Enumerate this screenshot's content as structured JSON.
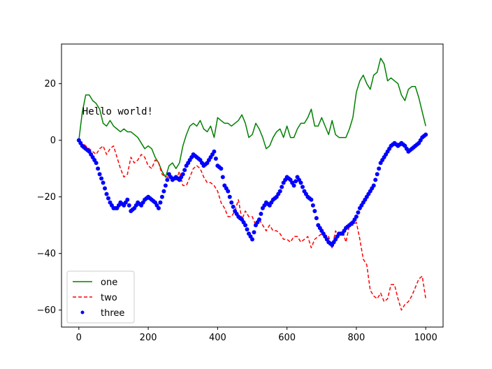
{
  "chart_data": {
    "type": "line",
    "x_range": [
      0,
      1000
    ],
    "xlim": [
      -50,
      1050
    ],
    "ylim": [
      -66,
      34
    ],
    "x_ticks": [
      0,
      200,
      400,
      600,
      800,
      1000
    ],
    "y_ticks": [
      20,
      0,
      -20,
      -40,
      -60
    ],
    "x_tick_labels": [
      "0",
      "200",
      "400",
      "600",
      "800",
      "1000"
    ],
    "y_tick_labels": [
      "20",
      "0",
      "−20",
      "−40",
      "−60"
    ],
    "grid": false,
    "legend_position": "lower-left",
    "annotation": {
      "text": "Hello world!",
      "x": 10,
      "y": 10
    },
    "series": [
      {
        "name": "one",
        "style": "solid-line",
        "color": "#008000",
        "x": [
          0,
          10,
          20,
          30,
          40,
          50,
          60,
          70,
          80,
          90,
          100,
          110,
          120,
          130,
          140,
          150,
          160,
          170,
          180,
          190,
          200,
          210,
          220,
          230,
          240,
          250,
          260,
          270,
          280,
          290,
          300,
          310,
          320,
          330,
          340,
          350,
          360,
          370,
          380,
          390,
          400,
          410,
          420,
          430,
          440,
          450,
          460,
          470,
          480,
          490,
          500,
          510,
          520,
          530,
          540,
          550,
          560,
          570,
          580,
          590,
          600,
          610,
          620,
          630,
          640,
          650,
          660,
          670,
          680,
          690,
          700,
          710,
          720,
          730,
          740,
          750,
          760,
          770,
          780,
          790,
          800,
          810,
          820,
          830,
          840,
          850,
          860,
          870,
          880,
          890,
          900,
          910,
          920,
          930,
          940,
          950,
          960,
          970,
          980,
          990,
          1000
        ],
        "values": [
          0,
          10,
          16,
          16,
          14,
          13,
          11,
          6,
          5,
          7,
          5,
          4,
          3,
          4,
          3,
          3,
          2,
          1,
          -1,
          -3,
          -2,
          -3,
          -6,
          -8,
          -11,
          -13,
          -9,
          -8,
          -10,
          -8,
          -2,
          2,
          5,
          6,
          5,
          7,
          4,
          3,
          5,
          1,
          8,
          7,
          6,
          6,
          5,
          6,
          7,
          9,
          6,
          1,
          2,
          6,
          4,
          1,
          -3,
          -2,
          1,
          3,
          4,
          1,
          5,
          1,
          1,
          4,
          6,
          6,
          8,
          11,
          5,
          5,
          8,
          5,
          2,
          7,
          2,
          1,
          1,
          1,
          4,
          8,
          17,
          21,
          23,
          20,
          18,
          23,
          24,
          29,
          27,
          21,
          22,
          21,
          20,
          16,
          14,
          18,
          19,
          19,
          15,
          10,
          5
        ]
      },
      {
        "name": "two",
        "style": "dashed-line",
        "color": "#ff0000",
        "x": [
          0,
          10,
          20,
          30,
          40,
          50,
          60,
          70,
          80,
          90,
          100,
          110,
          120,
          130,
          140,
          150,
          160,
          170,
          180,
          190,
          200,
          210,
          220,
          230,
          240,
          250,
          260,
          270,
          280,
          290,
          300,
          310,
          320,
          330,
          340,
          350,
          360,
          370,
          380,
          390,
          400,
          410,
          420,
          430,
          440,
          450,
          460,
          470,
          480,
          490,
          500,
          510,
          520,
          530,
          540,
          550,
          560,
          570,
          580,
          590,
          600,
          610,
          620,
          630,
          640,
          650,
          660,
          670,
          680,
          690,
          700,
          710,
          720,
          730,
          740,
          750,
          760,
          770,
          780,
          790,
          800,
          810,
          820,
          830,
          840,
          850,
          860,
          870,
          880,
          890,
          900,
          910,
          920,
          930,
          940,
          950,
          960,
          970,
          980,
          990,
          1000
        ],
        "values": [
          -1,
          -1,
          -2,
          -3,
          -4,
          -5,
          -3,
          -2,
          -5,
          -3,
          -2,
          -6,
          -10,
          -13,
          -12,
          -6,
          -8,
          -7,
          -5,
          -6,
          -9,
          -10,
          -7,
          -8,
          -12,
          -13,
          -13,
          -14,
          -14,
          -11,
          -16,
          -16,
          -13,
          -10,
          -9,
          -10,
          -13,
          -15,
          -15,
          -16,
          -18,
          -22,
          -24,
          -27,
          -27,
          -25,
          -21,
          -28,
          -25,
          -27,
          -27,
          -30,
          -28,
          -30,
          -32,
          -30,
          -32,
          -32,
          -33,
          -35,
          -35,
          -36,
          -34,
          -34,
          -36,
          -35,
          -34,
          -38,
          -35,
          -34,
          -33,
          -34,
          -34,
          -38,
          -32,
          -34,
          -32,
          -36,
          -30,
          -30,
          -29,
          -35,
          -42,
          -44,
          -53,
          -55,
          -56,
          -54,
          -57,
          -56,
          -51,
          -51,
          -56,
          -60,
          -58,
          -57,
          -55,
          -52,
          -49,
          -48,
          -56
        ]
      },
      {
        "name": "three",
        "style": "dots",
        "color": "#0000ff",
        "x": [
          0,
          10,
          20,
          30,
          40,
          50,
          60,
          70,
          80,
          90,
          100,
          110,
          120,
          130,
          140,
          150,
          160,
          170,
          180,
          190,
          200,
          210,
          220,
          230,
          240,
          250,
          260,
          270,
          280,
          290,
          300,
          310,
          320,
          330,
          340,
          350,
          360,
          370,
          380,
          390,
          400,
          410,
          420,
          430,
          440,
          450,
          460,
          470,
          480,
          490,
          500,
          510,
          520,
          530,
          540,
          550,
          560,
          570,
          580,
          590,
          600,
          610,
          620,
          630,
          640,
          650,
          660,
          670,
          680,
          690,
          700,
          710,
          720,
          730,
          740,
          750,
          760,
          770,
          780,
          790,
          800,
          810,
          820,
          830,
          840,
          850,
          860,
          870,
          880,
          890,
          900,
          910,
          920,
          930,
          940,
          950,
          960,
          970,
          980,
          990,
          1000
        ],
        "values": [
          0,
          -2,
          -3,
          -4,
          -6,
          -8,
          -12,
          -15,
          -19,
          -22,
          -24,
          -24,
          -22,
          -23,
          -21,
          -25,
          -24,
          -22,
          -23,
          -21,
          -20,
          -21,
          -22,
          -24,
          -20,
          -16,
          -12,
          -14,
          -13,
          -14,
          -12,
          -9,
          -7,
          -5,
          -6,
          -7,
          -9,
          -8,
          -6,
          -4,
          -9,
          -10,
          -16,
          -18,
          -22,
          -25,
          -27,
          -28,
          -30,
          -33,
          -35,
          -30,
          -28,
          -24,
          -22,
          -23,
          -21,
          -20,
          -18,
          -15,
          -13,
          -14,
          -16,
          -13,
          -15,
          -18,
          -20,
          -21,
          -25,
          -30,
          -32,
          -34,
          -36,
          -37,
          -35,
          -33,
          -33,
          -31,
          -30,
          -29,
          -27,
          -24,
          -22,
          -20,
          -18,
          -16,
          -12,
          -8,
          -6,
          -4,
          -2,
          -1,
          -2,
          -1,
          -2,
          -4,
          -3,
          -2,
          -1,
          1,
          2
        ]
      }
    ]
  }
}
